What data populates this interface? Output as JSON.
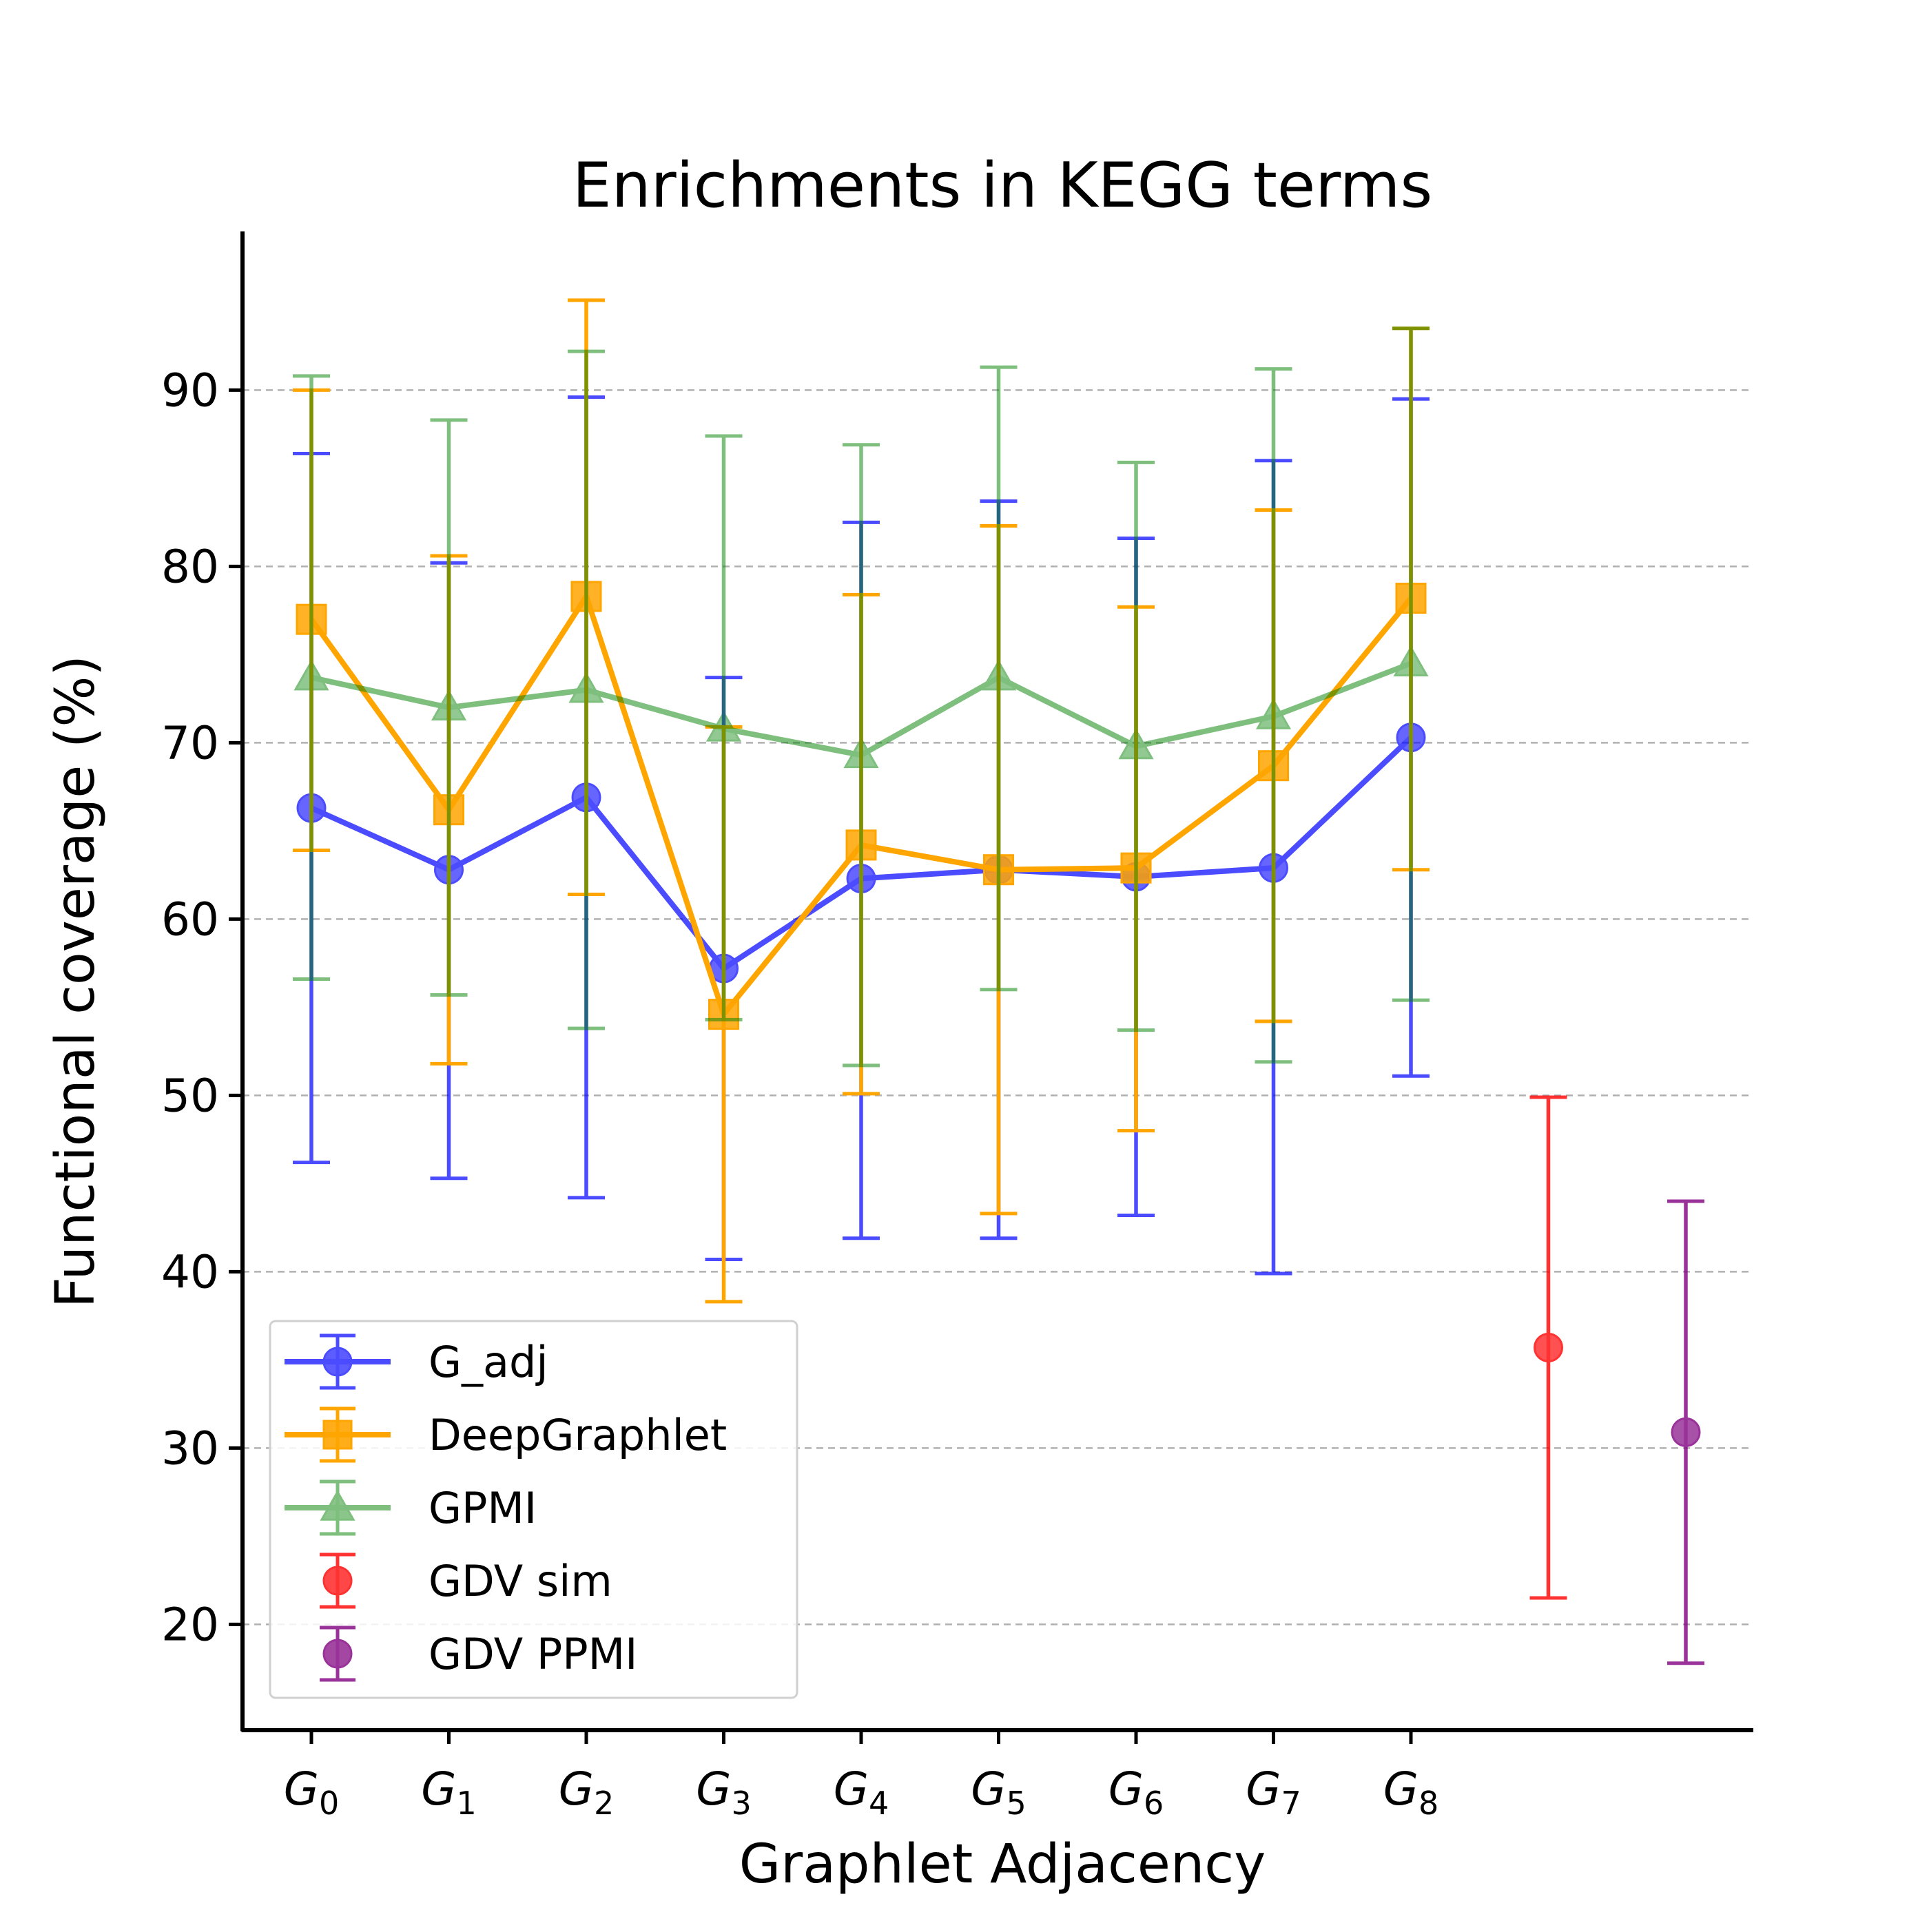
{
  "chart_data": {
    "type": "line",
    "title": "Enrichments in KEGG terms",
    "xlabel": "Graphlet Adjacency",
    "ylabel": "Functional coverage (%)",
    "ylim": [
      14,
      99
    ],
    "yticks": [
      20,
      30,
      40,
      50,
      60,
      70,
      80,
      90
    ],
    "grid": "horizontal dashed",
    "legend_position": "lower-left",
    "categories": [
      {
        "base": "G",
        "sub": "0"
      },
      {
        "base": "G",
        "sub": "1"
      },
      {
        "base": "G",
        "sub": "2"
      },
      {
        "base": "G",
        "sub": "3"
      },
      {
        "base": "G",
        "sub": "4"
      },
      {
        "base": "G",
        "sub": "5"
      },
      {
        "base": "G",
        "sub": "6"
      },
      {
        "base": "G",
        "sub": "7"
      },
      {
        "base": "G",
        "sub": "8"
      }
    ],
    "series": [
      {
        "name": "G_adj",
        "color": "#0000ff",
        "marker": "circle",
        "line": true,
        "alpha": 0.7,
        "x": [
          0,
          1,
          2,
          3,
          4,
          5,
          6,
          7,
          8
        ],
        "values": [
          66.3,
          62.8,
          66.9,
          57.2,
          62.3,
          62.8,
          62.4,
          62.9,
          70.3
        ],
        "err_low": [
          46.2,
          45.3,
          44.2,
          40.7,
          41.9,
          41.9,
          43.2,
          39.9,
          51.1
        ],
        "err_high": [
          86.4,
          80.2,
          89.6,
          73.7,
          82.5,
          83.7,
          81.6,
          86.0,
          89.5
        ]
      },
      {
        "name": "DeepGraphlet",
        "color": "#ffa500",
        "marker": "square",
        "line": true,
        "alpha": 1.0,
        "x": [
          0,
          1,
          2,
          3,
          4,
          5,
          6,
          7,
          8
        ],
        "values": [
          77.0,
          66.2,
          78.3,
          54.6,
          64.2,
          62.8,
          62.9,
          68.7,
          78.2
        ],
        "err_low": [
          63.9,
          51.8,
          61.4,
          38.3,
          50.1,
          43.3,
          48.0,
          54.2,
          62.8
        ],
        "err_high": [
          90.0,
          80.6,
          95.1,
          70.9,
          78.4,
          82.3,
          77.7,
          83.2,
          93.5
        ]
      },
      {
        "name": "GPMI",
        "color": "#008000",
        "marker": "triangle",
        "line": true,
        "alpha": 0.5,
        "x": [
          0,
          1,
          2,
          3,
          4,
          5,
          6,
          7,
          8
        ],
        "values": [
          73.7,
          72.0,
          73.0,
          70.8,
          69.3,
          73.7,
          69.8,
          71.5,
          74.5
        ],
        "err_low": [
          56.6,
          55.7,
          53.8,
          54.3,
          51.7,
          56.0,
          53.7,
          51.9,
          55.4
        ],
        "err_high": [
          90.8,
          88.3,
          92.2,
          87.4,
          86.9,
          91.3,
          85.9,
          91.2,
          93.5
        ]
      },
      {
        "name": "GDV sim",
        "color": "#ff0000",
        "marker": "circle",
        "line": false,
        "alpha": 0.8,
        "x": [
          9
        ],
        "values": [
          35.7
        ],
        "err_low": [
          21.5
        ],
        "err_high": [
          49.9
        ]
      },
      {
        "name": "GDV PPMI",
        "color": "#800080",
        "marker": "circle",
        "line": false,
        "alpha": 0.8,
        "x": [
          10
        ],
        "values": [
          30.9
        ],
        "err_low": [
          17.8
        ],
        "err_high": [
          44.0
        ]
      }
    ]
  }
}
